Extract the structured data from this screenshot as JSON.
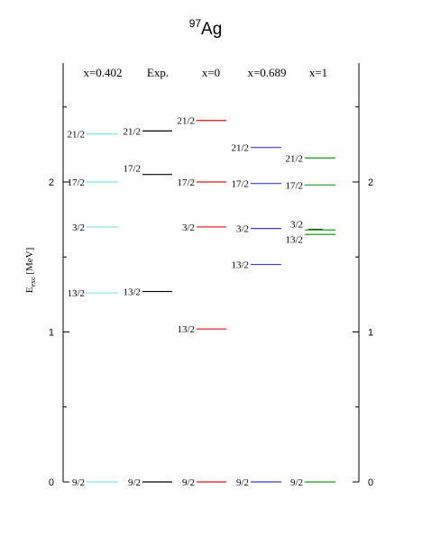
{
  "chart_data": {
    "type": "level_scheme",
    "title": "Ag",
    "title_superscript": "97",
    "ylabel_main": "E",
    "ylabel_sub": "exc",
    "ylabel_unit": " [MeV]",
    "ylim": [
      0,
      2.75
    ],
    "yticks": [
      "0",
      "1",
      "2"
    ],
    "columns": [
      {
        "name": "x=0.402",
        "color": "#7fe5e0",
        "levels": [
          {
            "label": "9/2",
            "energy": 0.0
          },
          {
            "label": "13/2",
            "energy": 1.26
          },
          {
            "label": "3/2",
            "energy": 1.7
          },
          {
            "label": "17/2",
            "energy": 2.0
          },
          {
            "label": "21/2",
            "energy": 2.32
          }
        ]
      },
      {
        "name": "Exp.",
        "color": "#000000",
        "levels": [
          {
            "label": "9/2",
            "energy": 0.0
          },
          {
            "label": "13/2",
            "energy": 1.27
          },
          {
            "label": "17/2",
            "energy": 2.05
          },
          {
            "label": "21/2",
            "energy": 2.34
          }
        ]
      },
      {
        "name": "x=0",
        "color": "#e01010",
        "levels": [
          {
            "label": "9/2",
            "energy": 0.0
          },
          {
            "label": "13/2",
            "energy": 1.02
          },
          {
            "label": "3/2",
            "energy": 1.7
          },
          {
            "label": "17/2",
            "energy": 2.0
          },
          {
            "label": "21/2",
            "energy": 2.41
          }
        ]
      },
      {
        "name": "x=0.689",
        "color": "#3a3ae0",
        "levels": [
          {
            "label": "9/2",
            "energy": 0.0
          },
          {
            "label": "13/2",
            "energy": 1.45
          },
          {
            "label": "3/2",
            "energy": 1.69
          },
          {
            "label": "17/2",
            "energy": 1.99
          },
          {
            "label": "21/2",
            "energy": 2.23
          }
        ]
      },
      {
        "name": "x=1",
        "color": "#1a9a1a",
        "levels": [
          {
            "label": "9/2",
            "energy": 0.0
          },
          {
            "label": "13/2",
            "energy": 1.65
          },
          {
            "label": "3/2",
            "energy": 1.68
          },
          {
            "label": "17/2",
            "energy": 1.98
          },
          {
            "label": "21/2",
            "energy": 2.16
          }
        ]
      }
    ]
  }
}
